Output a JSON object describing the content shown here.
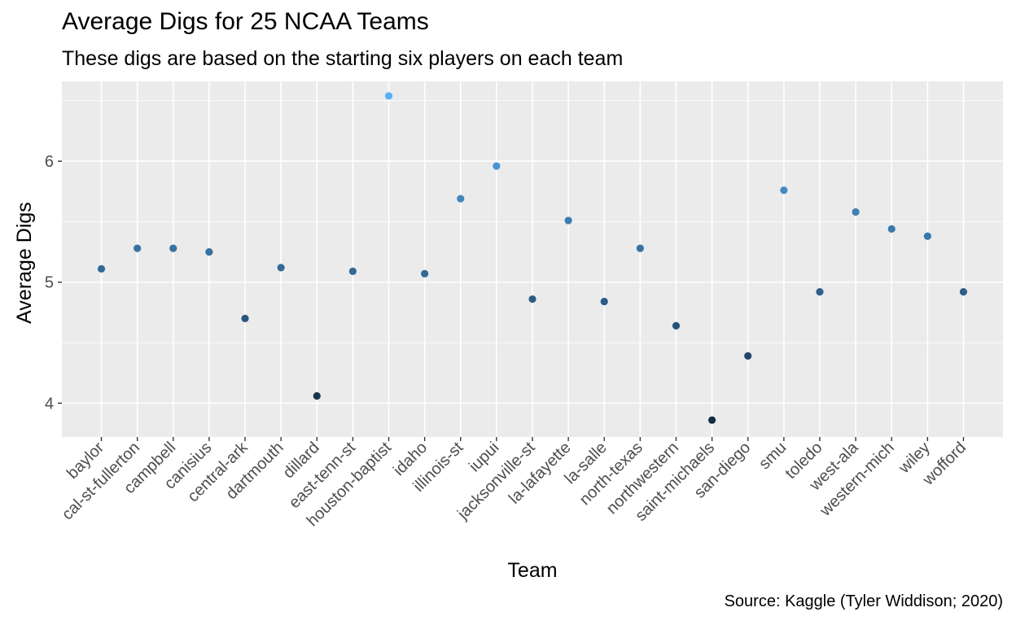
{
  "chart_data": {
    "type": "scatter",
    "title": "Average Digs for 25 NCAA Teams",
    "subtitle": "These digs are based on the starting six players on each team",
    "caption": "Source: Kaggle (Tyler Widdison; 2020)",
    "xlabel": "Team",
    "ylabel": "Average Digs",
    "ylim": [
      3.72,
      6.66
    ],
    "yticks": [
      4,
      5,
      6
    ],
    "ytick_labels": [
      "4",
      "5",
      "6"
    ],
    "grid": true,
    "color_scale": {
      "low": "#132B43",
      "high": "#56B1F7"
    },
    "categories": [
      "baylor",
      "cal-st-fullerton",
      "campbell",
      "canisius",
      "central-ark",
      "dartmouth",
      "dillard",
      "east-tenn-st",
      "houston-baptist",
      "idaho",
      "illinois-st",
      "iupui",
      "jacksonville-st",
      "la-lafayette",
      "la-salle",
      "north-texas",
      "northwestern",
      "saint-michaels",
      "san-diego",
      "smu",
      "toledo",
      "west-ala",
      "western-mich",
      "wiley",
      "wofford"
    ],
    "values": [
      5.11,
      5.28,
      5.28,
      5.25,
      4.7,
      5.12,
      4.06,
      5.09,
      6.54,
      5.07,
      5.69,
      5.96,
      4.86,
      5.51,
      4.84,
      5.28,
      4.64,
      3.86,
      4.39,
      5.76,
      4.92,
      5.58,
      5.44,
      5.38,
      4.92
    ]
  }
}
